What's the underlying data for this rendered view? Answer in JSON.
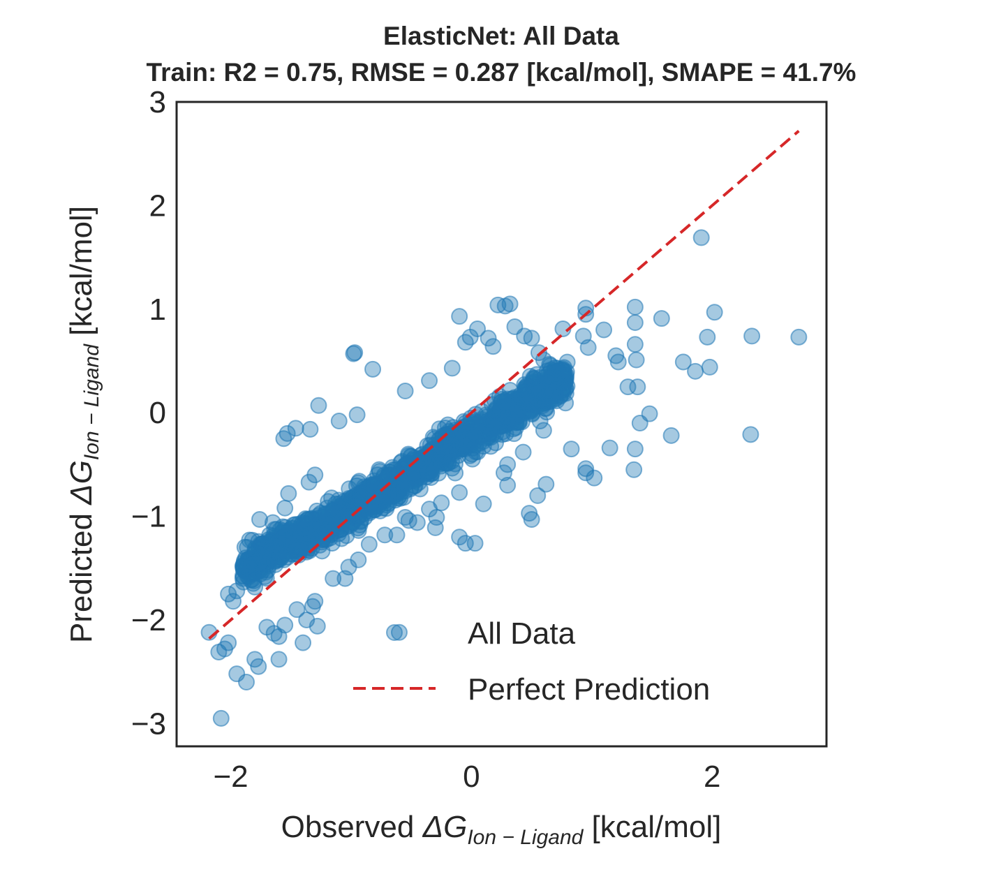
{
  "chart_data": {
    "type": "scatter",
    "title": "ElasticNet: All Data",
    "subtitle": "Train: R2 = 0.75, RMSE = 0.287 [kcal/mol], SMAPE = 41.7%",
    "xlabel": {
      "prefix": "Observed ",
      "symbol": "ΔG",
      "subscript": "Ion − Ligand",
      "suffix": " [kcal/mol]"
    },
    "ylabel": {
      "prefix": "Predicted ",
      "symbol": "ΔG",
      "subscript": "Ion − Ligand",
      "suffix": " [kcal/mol]"
    },
    "xlim": [
      -2.45,
      2.95
    ],
    "ylim": [
      -3.22,
      3.0
    ],
    "xticks": [
      -2,
      0,
      2
    ],
    "xtick_labels": [
      "−2",
      "0",
      "2"
    ],
    "yticks": [
      -3,
      -2,
      -1,
      0,
      1,
      2,
      3
    ],
    "ytick_labels": [
      "−3",
      "−2",
      "−1",
      "0",
      "1",
      "2",
      "3"
    ],
    "grid": false,
    "legend": {
      "position": "lower right",
      "entries": [
        {
          "label": "All Data",
          "kind": "marker"
        },
        {
          "label": "Perfect Prediction",
          "kind": "dashed-line"
        }
      ]
    },
    "colors": {
      "points": "#1f77b4",
      "perfect_line": "#d62728",
      "frame": "#262626"
    },
    "perfect_prediction_line": {
      "x": [
        -2.18,
        2.72
      ],
      "y": [
        -2.18,
        2.72
      ]
    },
    "series": [
      {
        "name": "All Data",
        "points": [
          [
            -2.08,
            -2.95
          ],
          [
            -1.95,
            -2.52
          ],
          [
            -1.87,
            -2.6
          ],
          [
            -1.8,
            -2.38
          ],
          [
            -1.77,
            -2.45
          ],
          [
            -1.6,
            -2.38
          ],
          [
            -1.4,
            -2.22
          ],
          [
            -1.6,
            -2.16
          ],
          [
            -1.64,
            -2.13
          ],
          [
            -1.7,
            -2.07
          ],
          [
            -2.18,
            -2.12
          ],
          [
            -2.1,
            -2.31
          ],
          [
            -2.05,
            -2.28
          ],
          [
            -2.02,
            -2.22
          ],
          [
            -2.02,
            -1.75
          ],
          [
            -1.98,
            -1.82
          ],
          [
            -1.95,
            -1.72
          ],
          [
            -1.9,
            -1.6
          ],
          [
            -1.82,
            -1.55
          ],
          [
            -1.84,
            -1.46
          ],
          [
            -1.82,
            -1.23
          ],
          [
            -1.8,
            -1.33
          ],
          [
            -1.76,
            -1.03
          ],
          [
            -1.65,
            -1.06
          ],
          [
            -1.55,
            -0.92
          ],
          [
            -1.52,
            -0.78
          ],
          [
            -1.35,
            -0.67
          ],
          [
            -1.3,
            -0.6
          ],
          [
            -1.56,
            -0.25
          ],
          [
            -1.53,
            -0.2
          ],
          [
            -1.46,
            -0.15
          ],
          [
            -1.34,
            -0.16
          ],
          [
            -1.27,
            0.07
          ],
          [
            -1.1,
            -0.08
          ],
          [
            -0.95,
            -0.02
          ],
          [
            -0.97,
            0.58
          ],
          [
            -0.98,
            0.57
          ],
          [
            -0.82,
            0.42
          ],
          [
            -0.55,
            0.21
          ],
          [
            -0.35,
            0.31
          ],
          [
            -0.16,
            0.43
          ],
          [
            -0.1,
            0.93
          ],
          [
            -0.05,
            0.68
          ],
          [
            -0.01,
            0.73
          ],
          [
            0.05,
            0.81
          ],
          [
            0.14,
            0.72
          ],
          [
            0.18,
            0.64
          ],
          [
            0.22,
            1.04
          ],
          [
            0.28,
            1.03
          ],
          [
            0.32,
            1.05
          ],
          [
            0.36,
            0.83
          ],
          [
            0.44,
            0.74
          ],
          [
            0.5,
            0.72
          ],
          [
            0.56,
            0.58
          ],
          [
            0.6,
            0.51
          ],
          [
            0.76,
            0.81
          ],
          [
            0.95,
            0.95
          ],
          [
            0.95,
            1.01
          ],
          [
            0.93,
            0.74
          ],
          [
            0.97,
            0.63
          ],
          [
            1.1,
            0.8
          ],
          [
            1.2,
            0.55
          ],
          [
            1.22,
            0.49
          ],
          [
            1.3,
            0.25
          ],
          [
            1.36,
            0.87
          ],
          [
            1.36,
            0.66
          ],
          [
            1.37,
            0.51
          ],
          [
            1.38,
            0.25
          ],
          [
            1.36,
            1.02
          ],
          [
            1.58,
            0.91
          ],
          [
            1.76,
            0.49
          ],
          [
            1.86,
            0.4
          ],
          [
            1.98,
            0.44
          ],
          [
            1.96,
            0.73
          ],
          [
            2.02,
            0.97
          ],
          [
            2.33,
            0.74
          ],
          [
            2.72,
            0.73
          ],
          [
            1.91,
            1.69
          ],
          [
            2.32,
            -0.21
          ],
          [
            1.66,
            -0.22
          ],
          [
            1.48,
            -0.01
          ],
          [
            1.4,
            -0.1
          ],
          [
            1.36,
            -0.35
          ],
          [
            1.35,
            -0.55
          ],
          [
            1.15,
            -0.34
          ],
          [
            1.02,
            -0.63
          ],
          [
            0.95,
            -0.54
          ],
          [
            0.95,
            -0.58
          ],
          [
            0.83,
            -0.35
          ],
          [
            0.6,
            -0.17
          ],
          [
            0.57,
            -0.08
          ],
          [
            0.43,
            -0.38
          ],
          [
            0.3,
            -0.5
          ],
          [
            0.3,
            -0.7
          ],
          [
            0.1,
            -0.88
          ],
          [
            0.03,
            -1.26
          ],
          [
            -0.05,
            -1.26
          ],
          [
            -0.1,
            -1.2
          ],
          [
            -0.25,
            -0.87
          ],
          [
            -0.29,
            -1.01
          ],
          [
            -0.3,
            -1.11
          ],
          [
            -0.35,
            -0.93
          ],
          [
            -0.45,
            -1.06
          ],
          [
            -0.52,
            -1.04
          ],
          [
            -0.55,
            -1.01
          ],
          [
            -0.62,
            -1.18
          ],
          [
            -0.72,
            -1.18
          ],
          [
            -0.85,
            -1.27
          ],
          [
            -0.94,
            -1.42
          ],
          [
            -1.02,
            -1.49
          ],
          [
            -1.05,
            -1.6
          ],
          [
            -1.15,
            -1.6
          ],
          [
            -1.3,
            -1.82
          ],
          [
            -1.32,
            -1.87
          ],
          [
            -1.45,
            -1.9
          ],
          [
            -1.55,
            -2.05
          ],
          [
            -0.6,
            -2.12
          ],
          [
            -1.28,
            -2.06
          ],
          [
            -1.37,
            -2.0
          ],
          [
            0.48,
            -0.97
          ],
          [
            0.5,
            -1.03
          ],
          [
            0.55,
            -0.8
          ],
          [
            0.62,
            -0.69
          ],
          [
            0.27,
            -0.58
          ],
          [
            -0.1,
            -0.77
          ]
        ]
      }
    ]
  }
}
